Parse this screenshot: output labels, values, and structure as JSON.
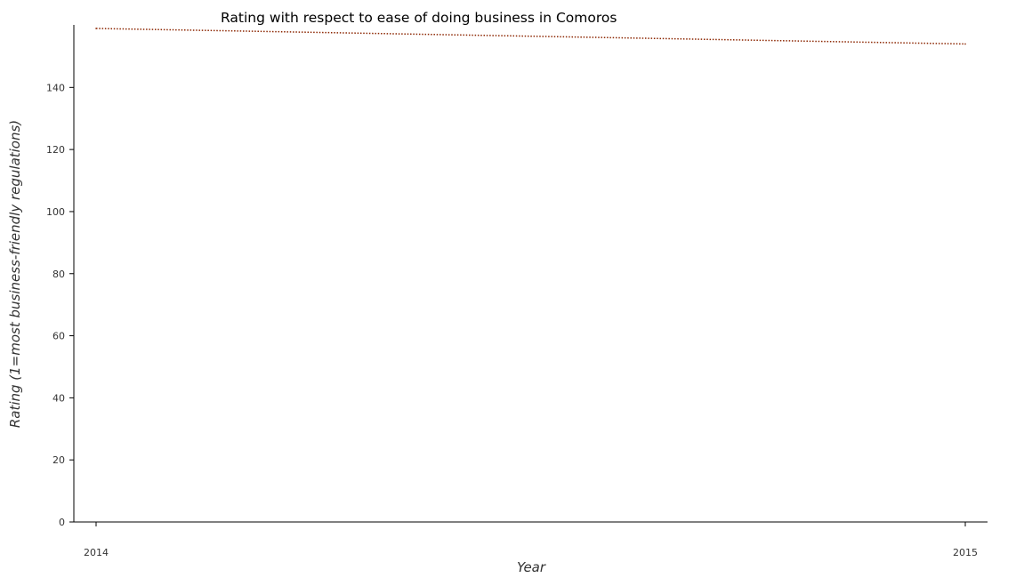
{
  "chart_data": {
    "type": "line",
    "title": "Rating with respect to ease of doing business in Comoros",
    "xlabel": "Year",
    "ylabel": "Rating (1=most business-friendly regulations)",
    "x": [
      "2014",
      "2015"
    ],
    "series": [
      {
        "values": [
          159,
          154
        ],
        "color": "#8b2500"
      }
    ],
    "ylim": [
      0,
      159
    ],
    "yticks": [
      0,
      20,
      40,
      60,
      80,
      100,
      120,
      140
    ],
    "grid": false,
    "legend": "none"
  }
}
